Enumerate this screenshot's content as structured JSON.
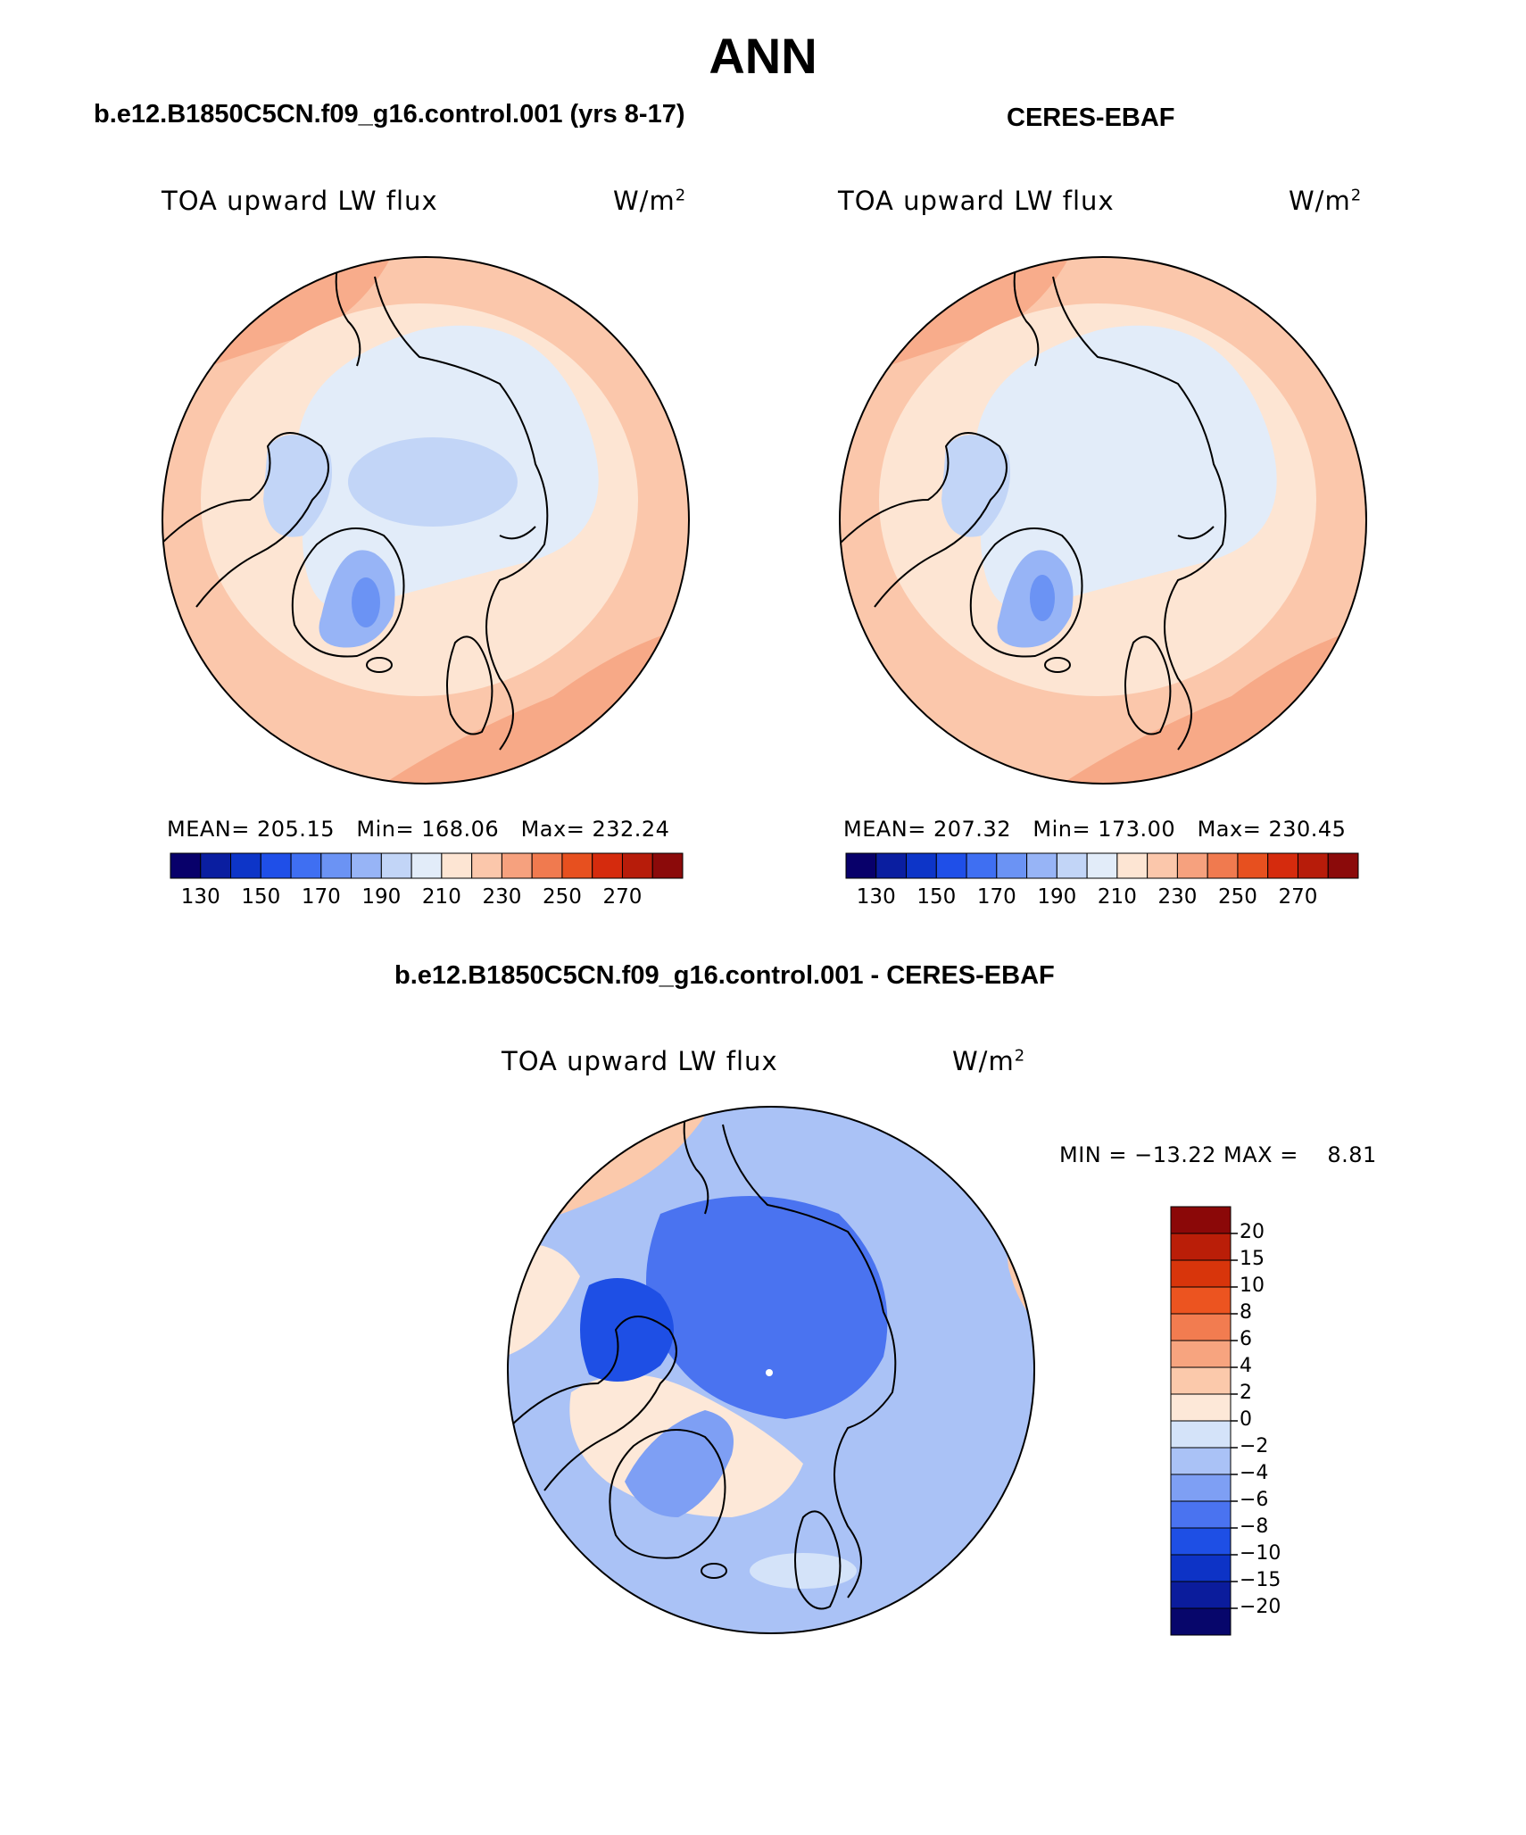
{
  "main_title": "ANN",
  "panels": [
    {
      "title": "b.e12.B1850C5CN.f09_g16.control.001 (yrs 8-17)",
      "variable": "TOA upward LW flux",
      "units": "W/m",
      "units_sup": "2",
      "mean_label": "MEAN=",
      "mean_value": "205.15",
      "min_label": "Min=",
      "min_value": "168.06",
      "max_label": "Max=",
      "max_value": "232.24"
    },
    {
      "title": "CERES-EBAF",
      "variable": "TOA upward LW flux",
      "units": "W/m",
      "units_sup": "2",
      "mean_label": "MEAN=",
      "mean_value": "207.32",
      "min_label": "Min=",
      "min_value": "173.00",
      "max_label": "Max=",
      "max_value": "230.45"
    }
  ],
  "diff_panel": {
    "title": "b.e12.B1850C5CN.f09_g16.control.001 - CERES-EBAF",
    "variable": "TOA upward LW flux",
    "units": "W/m",
    "units_sup": "2",
    "minmax_text": "MIN = −13.22 MAX =    8.81"
  },
  "abs_colorbar": {
    "colors": [
      "#08006a",
      "#0a1ea0",
      "#0d35c8",
      "#1f4fe8",
      "#3f6ff2",
      "#6b93f4",
      "#97b4f6",
      "#c2d5f7",
      "#e2ecf9",
      "#fde5d3",
      "#fbc7ab",
      "#f6a17e",
      "#f07a4f",
      "#e7501f",
      "#d52b0d",
      "#b71c0a",
      "#8b0a0a"
    ],
    "tick_labels": [
      "130",
      "150",
      "170",
      "190",
      "210",
      "230",
      "250",
      "270"
    ]
  },
  "diff_colorbar": {
    "colors": [
      "#07066b",
      "#0b1c9c",
      "#0d33c6",
      "#1e4fe5",
      "#4a73f0",
      "#7e9ff4",
      "#aac2f6",
      "#d4e3f9",
      "#fde8d8",
      "#fbc9ab",
      "#f7a47f",
      "#f27c50",
      "#ec5420",
      "#d8350b",
      "#ba1e08",
      "#8b0808"
    ],
    "tick_labels": [
      "20",
      "15",
      "10",
      "8",
      "6",
      "4",
      "2",
      "0",
      "−2",
      "−4",
      "−6",
      "−8",
      "−10",
      "−15",
      "−20"
    ]
  }
}
